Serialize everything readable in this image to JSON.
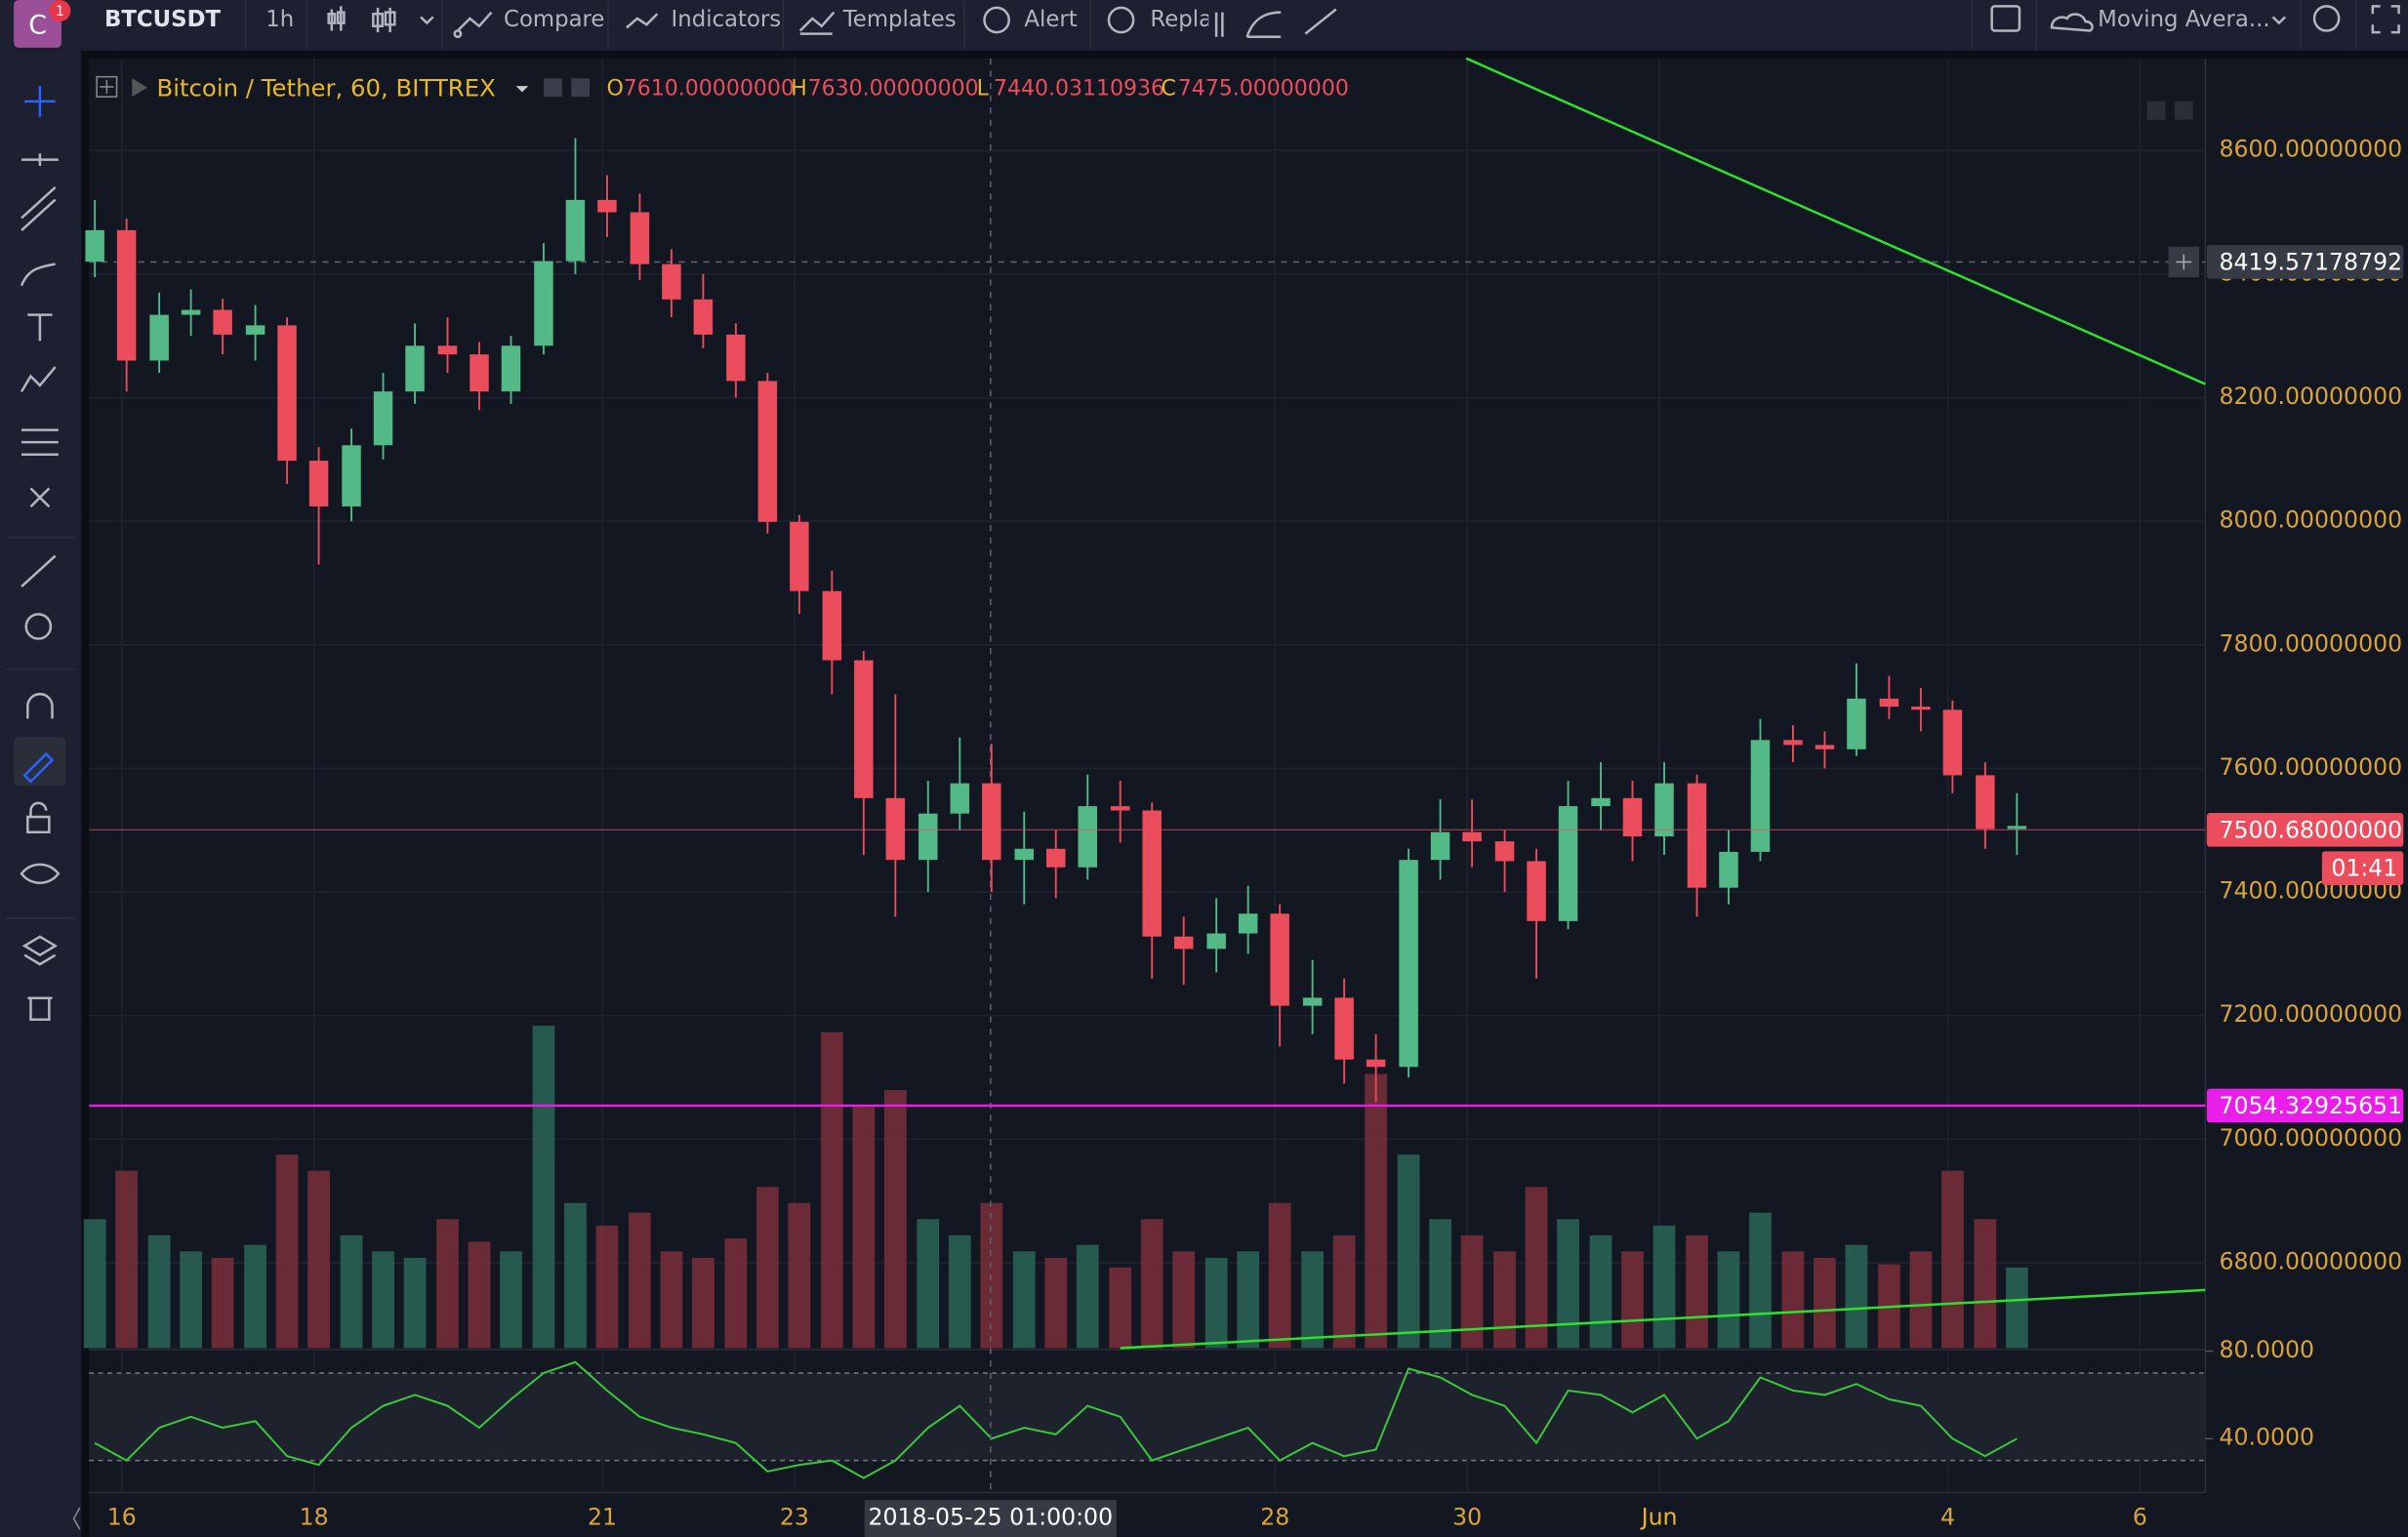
{
  "toolbar": {
    "avatar": "C",
    "badge": "1",
    "symbol": "BTCUSDT",
    "interval": "1h",
    "items": [
      "Compare",
      "Indicators",
      "Templates",
      "Alert",
      "Repla"
    ],
    "study": "Moving Avera..."
  },
  "legend": {
    "title": "Bitcoin / Tether, 60, BITTREX",
    "ohlc": [
      {
        "key": "O",
        "value": "7610.00000000"
      },
      {
        "key": "H",
        "value": "7630.00000000"
      },
      {
        "key": "L",
        "value": "7440.03110936"
      },
      {
        "key": "C",
        "value": "7475.00000000"
      }
    ]
  },
  "chart_data": {
    "type": "candlestick",
    "x": [
      15.72,
      16.05,
      16.39,
      16.72,
      17.05,
      17.39,
      17.72,
      18.05,
      18.39,
      18.72,
      19.05,
      19.39,
      19.72,
      20.05,
      20.39,
      20.72,
      21.05,
      21.39,
      21.72,
      22.05,
      22.39,
      22.72,
      23.05,
      23.39,
      23.72,
      24.05,
      24.39,
      24.72,
      25.05,
      25.39,
      25.72,
      26.05,
      26.39,
      26.72,
      27.05,
      27.39,
      27.72,
      28.05,
      28.39,
      28.72,
      29.05,
      29.39,
      29.72,
      30.05,
      30.39,
      30.72,
      31.05,
      31.39,
      31.72,
      32.05,
      32.39,
      32.72,
      33.05,
      33.39,
      33.72,
      34.05,
      34.39,
      34.72,
      35.05,
      35.39,
      35.72
    ],
    "open": [
      8420,
      8471,
      8260,
      8334,
      8342,
      8302,
      8317,
      8098,
      8024,
      8123,
      8210,
      8284,
      8270,
      8210,
      8284,
      8421,
      8520,
      8500,
      8416,
      8359,
      8302,
      8227,
      7999,
      7887,
      7775,
      7552,
      7452,
      7527,
      7576,
      7452,
      7470,
      7440,
      7539,
      7532,
      7328,
      7308,
      7333,
      7365,
      7216,
      7229,
      7129,
      7117,
      7452,
      7497,
      7482,
      7450,
      7353,
      7539,
      7552,
      7490,
      7576,
      7407,
      7465,
      7646,
      7638,
      7631,
      7713,
      7700,
      7695,
      7589,
      7502
    ],
    "high": [
      8520,
      8490,
      8370,
      8375,
      8360,
      8350,
      8330,
      8120,
      8150,
      8240,
      8320,
      8330,
      8290,
      8300,
      8450,
      8620,
      8560,
      8530,
      8440,
      8400,
      8320,
      8240,
      8010,
      7920,
      7790,
      7720,
      7580,
      7650,
      7640,
      7530,
      7500,
      7590,
      7580,
      7545,
      7360,
      7390,
      7410,
      7380,
      7290,
      7260,
      7170,
      7470,
      7550,
      7550,
      7500,
      7470,
      7580,
      7610,
      7580,
      7610,
      7590,
      7500,
      7680,
      7670,
      7660,
      7770,
      7750,
      7730,
      7710,
      7610,
      7560
    ],
    "low": [
      8395,
      8210,
      8240,
      8300,
      8270,
      8260,
      8060,
      7930,
      8000,
      8100,
      8190,
      8240,
      8180,
      8190,
      8270,
      8400,
      8460,
      8390,
      8330,
      8280,
      8200,
      7980,
      7850,
      7720,
      7460,
      7360,
      7400,
      7500,
      7400,
      7380,
      7390,
      7420,
      7480,
      7260,
      7250,
      7270,
      7300,
      7150,
      7170,
      7090,
      7060,
      7100,
      7420,
      7440,
      7400,
      7260,
      7340,
      7500,
      7450,
      7460,
      7360,
      7380,
      7450,
      7610,
      7600,
      7620,
      7680,
      7660,
      7560,
      7470,
      7460
    ],
    "close": [
      8471,
      8260,
      8334,
      8342,
      8302,
      8317,
      8098,
      8024,
      8123,
      8210,
      8284,
      8270,
      8210,
      8284,
      8421,
      8520,
      8500,
      8416,
      8359,
      8302,
      8227,
      7999,
      7887,
      7775,
      7552,
      7452,
      7527,
      7576,
      7452,
      7470,
      7440,
      7539,
      7532,
      7328,
      7308,
      7333,
      7365,
      7216,
      7229,
      7129,
      7117,
      7452,
      7497,
      7482,
      7450,
      7353,
      7539,
      7552,
      7490,
      7576,
      7407,
      7465,
      7646,
      7638,
      7631,
      7713,
      7700,
      7695,
      7589,
      7502,
      7507
    ],
    "up_color": "#53b987",
    "down_color": "#eb4d5c",
    "xlim": [
      15.66,
      37.68
    ],
    "xticks": [
      16,
      18,
      21,
      23,
      28,
      30,
      {
        "value": 32,
        "label": "Jun"
      },
      {
        "value": 35,
        "label": "4"
      },
      {
        "value": 37,
        "label": "6"
      }
    ],
    "ylim": [
      6662,
      8749
    ],
    "yticks": [
      {
        "value": 6800,
        "label": "6800.00000000"
      },
      {
        "value": 7000,
        "label": "7000.00000000"
      },
      {
        "value": 7200,
        "label": "7200.00000000"
      },
      {
        "value": 7400,
        "label": "7400.00000000"
      },
      {
        "value": 7600,
        "label": "7600.00000000"
      },
      {
        "value": 7800,
        "label": "7800.00000000"
      },
      {
        "value": 8000,
        "label": "8000.00000000"
      },
      {
        "value": 8200,
        "label": "8200.00000000"
      },
      {
        "value": 8400,
        "label": "8400.00000000"
      },
      {
        "value": 8600,
        "label": "8600.00000000"
      }
    ],
    "grid": true,
    "volume": {
      "ylim": [
        0,
        100
      ],
      "values": [
        40,
        55,
        35,
        30,
        28,
        32,
        60,
        55,
        35,
        30,
        28,
        40,
        33,
        30,
        100,
        45,
        38,
        42,
        30,
        28,
        34,
        50,
        45,
        98,
        75,
        80,
        40,
        35,
        45,
        30,
        28,
        32,
        25,
        40,
        30,
        28,
        30,
        45,
        30,
        35,
        85,
        60,
        40,
        35,
        30,
        50,
        40,
        35,
        30,
        38,
        35,
        30,
        42,
        30,
        28,
        32,
        26,
        30,
        55,
        40,
        25
      ],
      "up_color": "#2b6656",
      "down_color": "#7a2f3a"
    },
    "rsi": {
      "color": "#3cc43c",
      "ylim": [
        15.4,
        80
      ],
      "band": [
        30,
        70
      ],
      "yticks": [
        {
          "value": 80,
          "label": "80.0000"
        },
        {
          "value": 40,
          "label": "40.0000"
        }
      ],
      "values": [
        38,
        30,
        45,
        50,
        45,
        48,
        32,
        28,
        45,
        55,
        60,
        55,
        45,
        58,
        70,
        75,
        62,
        50,
        45,
        42,
        38,
        25,
        28,
        30,
        22,
        30,
        45,
        55,
        40,
        45,
        42,
        55,
        50,
        30,
        35,
        40,
        45,
        30,
        38,
        32,
        35,
        72,
        68,
        60,
        55,
        38,
        62,
        60,
        52,
        60,
        40,
        48,
        68,
        62,
        60,
        65,
        58,
        55,
        40,
        32,
        40
      ]
    },
    "trend_lines": [
      {
        "x": [
          29.99,
          37.68
        ],
        "y": [
          8749,
          8222
        ]
      },
      {
        "x": [
          26.39,
          37.68
        ],
        "y": [
          6662,
          6756
        ]
      }
    ],
    "trend_color": "#2ee02e",
    "horizontal_line": {
      "value": 7054.32925651,
      "label": "7054.32925651",
      "color": "#e91ee9"
    },
    "last_price": {
      "value": 7500.68,
      "label": "7500.68000000",
      "countdown": "01:41",
      "color": "#eb4d5c"
    },
    "crosshair": {
      "x": {
        "value": 25.04,
        "label": "2018-05-25 01:00:00"
      },
      "y": {
        "value": 8419.57178792,
        "label": "8419.57178792"
      }
    }
  }
}
